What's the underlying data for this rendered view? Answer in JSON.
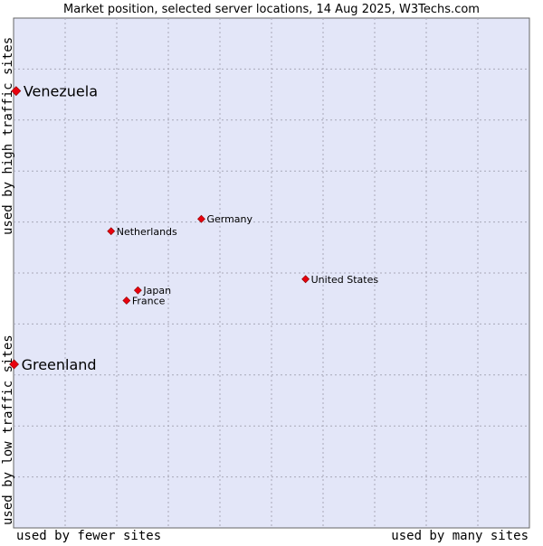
{
  "chart_data": {
    "type": "scatter",
    "title": "Market position, selected server locations, 14 Aug 2025, W3Techs.com",
    "xlabel_left": "used by fewer sites",
    "xlabel_right": "used by many sites",
    "ylabel_bottom": "used by low traffic sites",
    "ylabel_top": "used by high traffic sites",
    "xlim": [
      0,
      100
    ],
    "ylim": [
      0,
      100
    ],
    "grid": true,
    "background_color": "#e3e6f8",
    "marker_color": "#e8000e",
    "points": [
      {
        "name": "Venezuela",
        "x": 0.5,
        "y": 85.7,
        "highlight": true
      },
      {
        "name": "Greenland",
        "x": 0.1,
        "y": 32.1,
        "highlight": true
      },
      {
        "name": "Germany",
        "x": 36.4,
        "y": 60.6,
        "highlight": false
      },
      {
        "name": "Netherlands",
        "x": 18.9,
        "y": 58.2,
        "highlight": false
      },
      {
        "name": "United States",
        "x": 56.6,
        "y": 48.8,
        "highlight": false
      },
      {
        "name": "Japan",
        "x": 24.1,
        "y": 46.6,
        "highlight": false
      },
      {
        "name": "France",
        "x": 21.9,
        "y": 44.6,
        "highlight": false
      }
    ]
  }
}
